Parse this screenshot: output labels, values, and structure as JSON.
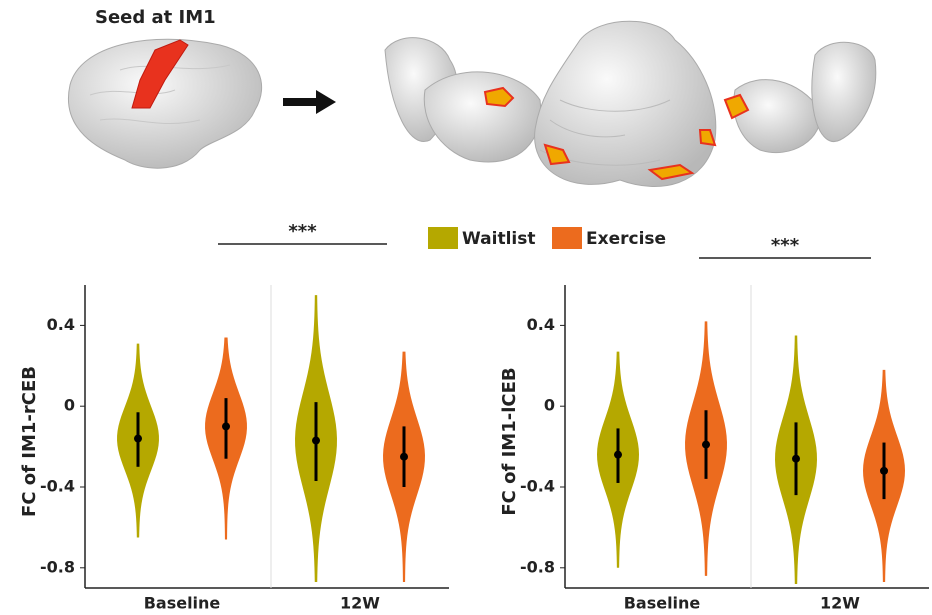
{
  "header": {
    "title": "Seed at IM1"
  },
  "legend": [
    {
      "name": "Waitlist",
      "color": "#b5a800"
    },
    {
      "name": "Exercise",
      "color": "#ec6b1e"
    }
  ],
  "chart_data": [
    {
      "type": "violin",
      "y_label": "FC of IM1-rCEB",
      "annotation": "***",
      "categories": [
        "Baseline",
        "12W"
      ],
      "ylim": [
        -0.9,
        0.6
      ],
      "yticks": [
        -0.8,
        -0.4,
        0,
        0.4
      ],
      "series": [
        {
          "color": "#b5a800",
          "values": [
            -0.16,
            -0.17
          ],
          "whisker_low": [
            -0.3,
            -0.37
          ],
          "whisker_high": [
            -0.03,
            0.02
          ],
          "min": [
            -0.65,
            -0.87
          ],
          "max": [
            0.31,
            0.55
          ]
        },
        {
          "color": "#ec6b1e",
          "values": [
            -0.1,
            -0.25
          ],
          "whisker_low": [
            -0.26,
            -0.4
          ],
          "whisker_high": [
            0.04,
            -0.1
          ],
          "min": [
            -0.66,
            -0.87
          ],
          "max": [
            0.34,
            0.27
          ]
        }
      ]
    },
    {
      "type": "violin",
      "y_label": "FC of IM1-lCEB",
      "annotation": "***",
      "categories": [
        "Baseline",
        "12W"
      ],
      "ylim": [
        -0.9,
        0.6
      ],
      "yticks": [
        -0.8,
        -0.4,
        0,
        0.4
      ],
      "series": [
        {
          "color": "#b5a800",
          "values": [
            -0.24,
            -0.26
          ],
          "whisker_low": [
            -0.38,
            -0.44
          ],
          "whisker_high": [
            -0.11,
            -0.08
          ],
          "min": [
            -0.8,
            -0.88
          ],
          "max": [
            0.27,
            0.35
          ]
        },
        {
          "color": "#ec6b1e",
          "values": [
            -0.19,
            -0.32
          ],
          "whisker_low": [
            -0.36,
            -0.46
          ],
          "whisker_high": [
            -0.02,
            -0.18
          ],
          "min": [
            -0.84,
            -0.87
          ],
          "max": [
            0.42,
            0.18
          ]
        }
      ]
    }
  ]
}
